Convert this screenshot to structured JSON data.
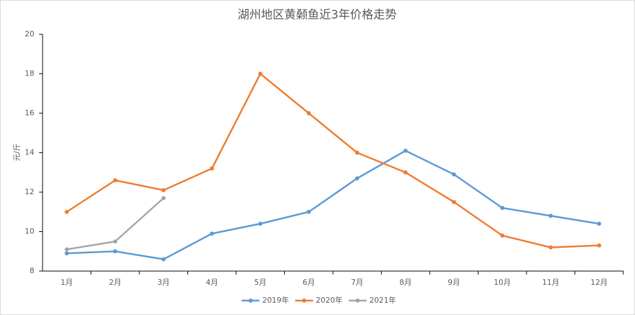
{
  "chart_data": {
    "type": "line",
    "title": "湖州地区黄颡鱼近3年价格走势",
    "y_label": "元/斤",
    "categories": [
      "1月",
      "2月",
      "3月",
      "4月",
      "5月",
      "6月",
      "7月",
      "8月",
      "9月",
      "10月",
      "11月",
      "12月"
    ],
    "series": [
      {
        "name": "2019年",
        "color": "#5b9bd5",
        "values": [
          8.9,
          9.0,
          8.6,
          9.9,
          10.4,
          11.0,
          12.7,
          14.1,
          12.9,
          11.2,
          10.8,
          10.4
        ]
      },
      {
        "name": "2020年",
        "color": "#ed7d31",
        "values": [
          11.0,
          12.6,
          12.1,
          13.2,
          18.0,
          16.0,
          14.0,
          13.0,
          11.5,
          9.8,
          9.2,
          9.3
        ]
      },
      {
        "name": "2021年",
        "color": "#a5a5a5",
        "values": [
          9.1,
          9.5,
          11.7,
          null,
          null,
          null,
          null,
          null,
          null,
          null,
          null,
          null
        ]
      }
    ],
    "ylim": [
      8,
      20
    ],
    "yticks": [
      8,
      10,
      12,
      14,
      16,
      18,
      20
    ],
    "legend": "bottom"
  }
}
